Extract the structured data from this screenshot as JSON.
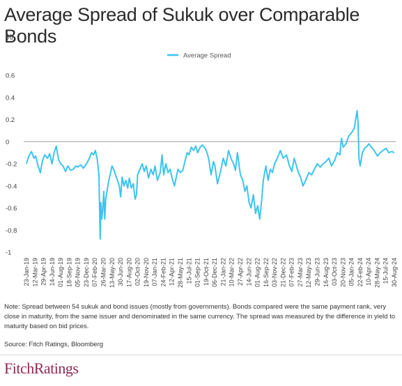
{
  "title": "Average Spread of Sukuk over Comparable Bonds",
  "unit": "%",
  "note": "Note:  Spread between 54 sukuk and bond issues (mostly from governments). Bonds compared were the same payment rank, very close in maturity, from the same issuer and denominated in the same currency. The spread was measured by the difference in yield to maturity based on bid prices.",
  "source": "Source: Fitch Ratings, Bloomberg",
  "logo": {
    "part1": "Fitch",
    "part2": "Ratings"
  },
  "colors": {
    "series": "#3cc4ef",
    "zero_line": "#9a9a9a",
    "brand": "#8e2a54"
  },
  "chart_data": {
    "type": "line",
    "legend": "top-center",
    "grid": false,
    "ylim": [
      -1,
      0.6
    ],
    "yticks": [
      -1,
      -0.8,
      -0.6,
      -0.4,
      -0.2,
      0,
      0.2,
      0.4,
      0.6
    ],
    "ytick_labels": [
      "-1",
      "-0.8",
      "-0.6",
      "-0.4",
      "-0.2",
      "0",
      "0.2",
      "0.4",
      "0.6"
    ],
    "xlim": [
      "2019-01-23",
      "2024-08-30"
    ],
    "xtick_labels": [
      "23-Jan-19",
      "12-Mar-19",
      "29-Apr-19",
      "14-Jun-19",
      "01-Aug-19",
      "18-Sep-19",
      "05-Nov-19",
      "23-Dec-19",
      "07-Feb-20",
      "26-Mar-20",
      "13-May-20",
      "30-Jun-20",
      "17-Aug-20",
      "02-Oct-20",
      "19-Nov-20",
      "07-Jan-21",
      "24-Feb-21",
      "12-Apr-21",
      "28-May-21",
      "15-Jul-21",
      "01-Sep-21",
      "19-Oct-21",
      "06-Dec-21",
      "21-Jan-22",
      "10-Mar-22",
      "27-Apr-22",
      "14-Jun-22",
      "01-Aug-22",
      "16-Sep-22",
      "03-Nov-22",
      "21-Dec-22",
      "07-Feb-23",
      "27-Mar-23",
      "12-May-23",
      "29-Jun-23",
      "16-Aug-23",
      "03-Oct-23",
      "20-Nov-23",
      "05-Jan-24",
      "22-Feb-24",
      "10-Apr-24",
      "28-May-24",
      "15-Jul-24",
      "30-Aug-24"
    ],
    "series": [
      {
        "name": "Average Spread",
        "points": [
          [
            "2019-01-23",
            -0.2
          ],
          [
            "2019-02-05",
            -0.13
          ],
          [
            "2019-02-20",
            -0.09
          ],
          [
            "2019-03-05",
            -0.15
          ],
          [
            "2019-03-15",
            -0.13
          ],
          [
            "2019-03-28",
            -0.22
          ],
          [
            "2019-04-10",
            -0.28
          ],
          [
            "2019-04-22",
            -0.17
          ],
          [
            "2019-05-05",
            -0.12
          ],
          [
            "2019-05-20",
            -0.15
          ],
          [
            "2019-06-01",
            -0.11
          ],
          [
            "2019-06-14",
            -0.2
          ],
          [
            "2019-06-26",
            -0.1
          ],
          [
            "2019-07-08",
            -0.04
          ],
          [
            "2019-07-20",
            -0.16
          ],
          [
            "2019-08-01",
            -0.2
          ],
          [
            "2019-08-15",
            -0.22
          ],
          [
            "2019-08-28",
            -0.27
          ],
          [
            "2019-09-10",
            -0.22
          ],
          [
            "2019-09-25",
            -0.26
          ],
          [
            "2019-10-10",
            -0.25
          ],
          [
            "2019-10-25",
            -0.22
          ],
          [
            "2019-11-05",
            -0.23
          ],
          [
            "2019-11-20",
            -0.21
          ],
          [
            "2019-12-05",
            -0.24
          ],
          [
            "2019-12-23",
            -0.2
          ],
          [
            "2020-01-08",
            -0.15
          ],
          [
            "2020-01-20",
            -0.1
          ],
          [
            "2020-02-01",
            -0.12
          ],
          [
            "2020-02-10",
            -0.08
          ],
          [
            "2020-02-20",
            -0.15
          ],
          [
            "2020-03-01",
            -0.3
          ],
          [
            "2020-03-08",
            -0.88
          ],
          [
            "2020-03-12",
            -0.55
          ],
          [
            "2020-03-17",
            -0.7
          ],
          [
            "2020-03-22",
            -0.62
          ],
          [
            "2020-03-28",
            -0.45
          ],
          [
            "2020-04-02",
            -0.7
          ],
          [
            "2020-04-08",
            -0.52
          ],
          [
            "2020-04-15",
            -0.45
          ],
          [
            "2020-04-25",
            -0.35
          ],
          [
            "2020-05-05",
            -0.28
          ],
          [
            "2020-05-13",
            -0.22
          ],
          [
            "2020-05-22",
            -0.25
          ],
          [
            "2020-06-01",
            -0.3
          ],
          [
            "2020-06-12",
            -0.35
          ],
          [
            "2020-06-22",
            -0.4
          ],
          [
            "2020-06-30",
            -0.5
          ],
          [
            "2020-07-08",
            -0.32
          ],
          [
            "2020-07-18",
            -0.4
          ],
          [
            "2020-07-28",
            -0.35
          ],
          [
            "2020-08-08",
            -0.42
          ],
          [
            "2020-08-17",
            -0.33
          ],
          [
            "2020-08-28",
            -0.42
          ],
          [
            "2020-09-08",
            -0.38
          ],
          [
            "2020-09-18",
            -0.52
          ],
          [
            "2020-09-26",
            -0.48
          ],
          [
            "2020-10-02",
            -0.3
          ],
          [
            "2020-10-15",
            -0.25
          ],
          [
            "2020-10-28",
            -0.2
          ],
          [
            "2020-11-08",
            -0.27
          ],
          [
            "2020-11-19",
            -0.22
          ],
          [
            "2020-12-02",
            -0.33
          ],
          [
            "2020-12-15",
            -0.25
          ],
          [
            "2020-12-28",
            -0.3
          ],
          [
            "2021-01-07",
            -0.22
          ],
          [
            "2021-01-20",
            -0.35
          ],
          [
            "2021-02-05",
            -0.28
          ],
          [
            "2021-02-15",
            -0.12
          ],
          [
            "2021-02-24",
            -0.3
          ],
          [
            "2021-03-08",
            -0.2
          ],
          [
            "2021-03-20",
            -0.28
          ],
          [
            "2021-04-01",
            -0.25
          ],
          [
            "2021-04-12",
            -0.33
          ],
          [
            "2021-04-25",
            -0.4
          ],
          [
            "2021-05-05",
            -0.32
          ],
          [
            "2021-05-15",
            -0.25
          ],
          [
            "2021-05-28",
            -0.28
          ],
          [
            "2021-06-10",
            -0.26
          ],
          [
            "2021-06-22",
            -0.18
          ],
          [
            "2021-07-05",
            -0.1
          ],
          [
            "2021-07-15",
            -0.12
          ],
          [
            "2021-07-28",
            -0.05
          ],
          [
            "2021-08-10",
            -0.08
          ],
          [
            "2021-08-22",
            -0.04
          ],
          [
            "2021-09-01",
            -0.1
          ],
          [
            "2021-09-15",
            -0.05
          ],
          [
            "2021-09-28",
            -0.03
          ],
          [
            "2021-10-08",
            -0.05
          ],
          [
            "2021-10-19",
            -0.08
          ],
          [
            "2021-11-01",
            -0.15
          ],
          [
            "2021-11-15",
            -0.3
          ],
          [
            "2021-11-28",
            -0.18
          ],
          [
            "2021-12-06",
            -0.22
          ],
          [
            "2021-12-20",
            -0.38
          ],
          [
            "2022-01-05",
            -0.28
          ],
          [
            "2022-01-21",
            -0.15
          ],
          [
            "2022-02-05",
            -0.22
          ],
          [
            "2022-02-20",
            -0.08
          ],
          [
            "2022-03-05",
            -0.15
          ],
          [
            "2022-03-20",
            -0.2
          ],
          [
            "2022-03-30",
            -0.26
          ],
          [
            "2022-04-10",
            -0.1
          ],
          [
            "2022-04-20",
            -0.22
          ],
          [
            "2022-04-27",
            -0.3
          ],
          [
            "2022-05-10",
            -0.35
          ],
          [
            "2022-05-22",
            -0.45
          ],
          [
            "2022-06-02",
            -0.4
          ],
          [
            "2022-06-14",
            -0.55
          ],
          [
            "2022-06-25",
            -0.6
          ],
          [
            "2022-07-08",
            -0.48
          ],
          [
            "2022-07-20",
            -0.65
          ],
          [
            "2022-08-01",
            -0.58
          ],
          [
            "2022-08-12",
            -0.7
          ],
          [
            "2022-08-22",
            -0.55
          ],
          [
            "2022-09-01",
            -0.35
          ],
          [
            "2022-09-16",
            -0.22
          ],
          [
            "2022-09-28",
            -0.35
          ],
          [
            "2022-10-10",
            -0.25
          ],
          [
            "2022-10-22",
            -0.28
          ],
          [
            "2022-11-03",
            -0.2
          ],
          [
            "2022-11-18",
            -0.15
          ],
          [
            "2022-12-05",
            -0.08
          ],
          [
            "2022-12-21",
            -0.15
          ],
          [
            "2023-01-08",
            -0.12
          ],
          [
            "2023-01-25",
            -0.22
          ],
          [
            "2023-02-07",
            -0.27
          ],
          [
            "2023-02-20",
            -0.15
          ],
          [
            "2023-03-05",
            -0.22
          ],
          [
            "2023-03-15",
            -0.28
          ],
          [
            "2023-03-27",
            -0.32
          ],
          [
            "2023-04-10",
            -0.4
          ],
          [
            "2023-04-25",
            -0.35
          ],
          [
            "2023-05-12",
            -0.28
          ],
          [
            "2023-05-28",
            -0.3
          ],
          [
            "2023-06-12",
            -0.25
          ],
          [
            "2023-06-29",
            -0.2
          ],
          [
            "2023-07-15",
            -0.23
          ],
          [
            "2023-08-01",
            -0.2
          ],
          [
            "2023-08-16",
            -0.18
          ],
          [
            "2023-09-01",
            -0.15
          ],
          [
            "2023-09-15",
            -0.22
          ],
          [
            "2023-10-03",
            -0.17
          ],
          [
            "2023-10-18",
            -0.1
          ],
          [
            "2023-11-01",
            -0.12
          ],
          [
            "2023-11-10",
            0.03
          ],
          [
            "2023-11-20",
            -0.05
          ],
          [
            "2023-12-05",
            -0.02
          ],
          [
            "2023-12-20",
            0.05
          ],
          [
            "2024-01-05",
            0.08
          ],
          [
            "2024-01-20",
            0.12
          ],
          [
            "2024-02-05",
            0.28
          ],
          [
            "2024-02-10",
            0.18
          ],
          [
            "2024-02-15",
            -0.15
          ],
          [
            "2024-02-22",
            -0.22
          ],
          [
            "2024-03-05",
            -0.1
          ],
          [
            "2024-03-18",
            -0.06
          ],
          [
            "2024-04-01",
            -0.04
          ],
          [
            "2024-04-10",
            -0.02
          ],
          [
            "2024-04-25",
            -0.05
          ],
          [
            "2024-05-10",
            -0.08
          ],
          [
            "2024-05-28",
            -0.13
          ],
          [
            "2024-06-12",
            -0.1
          ],
          [
            "2024-06-28",
            -0.08
          ],
          [
            "2024-07-15",
            -0.06
          ],
          [
            "2024-07-30",
            -0.1
          ],
          [
            "2024-08-15",
            -0.09
          ],
          [
            "2024-08-30",
            -0.1
          ]
        ]
      }
    ]
  }
}
